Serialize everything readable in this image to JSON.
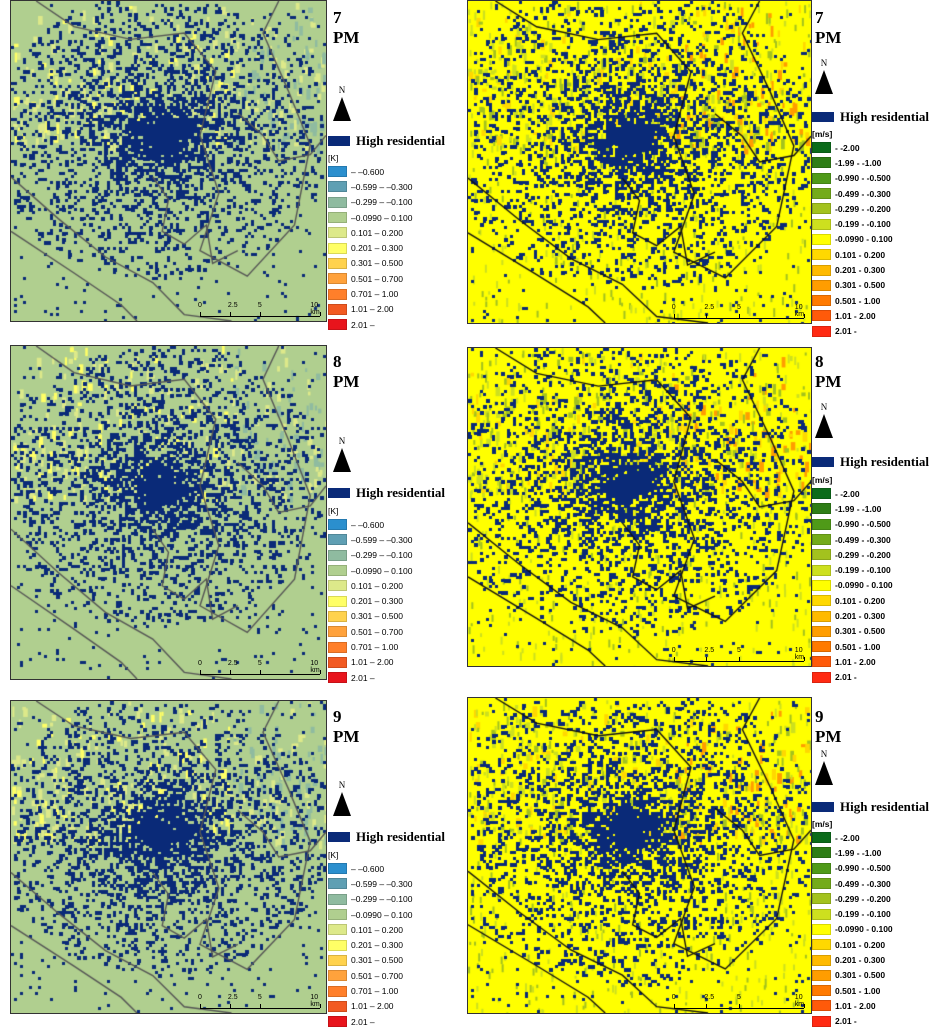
{
  "high_residential_label": "High residential",
  "north_label": "N",
  "scale_labels": [
    "0",
    "2.5",
    "5",
    "10 km"
  ],
  "colors": {
    "high_residential": "#0a2a78",
    "temp_bg": "#b0cf8f",
    "wind_bg": "#ffff00",
    "coast": "#333333"
  },
  "temperature_legend": {
    "unit": "[K]",
    "items": [
      {
        "label": "– –0.600",
        "color": "#2b8fce"
      },
      {
        "label": "–0.599 – –0.300",
        "color": "#5f9fb3"
      },
      {
        "label": "–0.299 – –0.100",
        "color": "#8fbba0"
      },
      {
        "label": "–0.0990 – 0.100",
        "color": "#b0cf8f"
      },
      {
        "label": "0.101 – 0.200",
        "color": "#dde98a"
      },
      {
        "label": "0.201 – 0.300",
        "color": "#ffff66"
      },
      {
        "label": "0.301 – 0.500",
        "color": "#ffd24d"
      },
      {
        "label": "0.501 – 0.700",
        "color": "#ffa23c"
      },
      {
        "label": "0.701 – 1.00",
        "color": "#ff7f2a"
      },
      {
        "label": "1.01 – 2.00",
        "color": "#f25a22"
      },
      {
        "label": "2.01 –",
        "color": "#e8141c"
      }
    ]
  },
  "wind_legend": {
    "unit": "[m/s]",
    "items": [
      {
        "label": " - -2.00",
        "color": "#0b6b1a"
      },
      {
        "label": "-1.99 - -1.00",
        "color": "#2e7d16"
      },
      {
        "label": "-0.990 - -0.500",
        "color": "#4f9a18"
      },
      {
        "label": "-0.499 - -0.300",
        "color": "#74ab1a"
      },
      {
        "label": "-0.299 - -0.200",
        "color": "#a3c21e"
      },
      {
        "label": "-0.199 - -0.100",
        "color": "#cde01f"
      },
      {
        "label": "-0.0990 - 0.100",
        "color": "#ffff00"
      },
      {
        "label": "0.101 - 0.200",
        "color": "#ffd800"
      },
      {
        "label": "0.201 - 0.300",
        "color": "#ffba00"
      },
      {
        "label": "0.301 - 0.500",
        "color": "#ff9d00"
      },
      {
        "label": "0.501 - 1.00",
        "color": "#ff7a00"
      },
      {
        "label": "1.01 - 2.00",
        "color": "#ff5a0a"
      },
      {
        "label": "2.01 -",
        "color": "#ff2a12"
      }
    ]
  },
  "panels": [
    {
      "time": "7 PM",
      "variable": "temperature"
    },
    {
      "time": "7 PM",
      "variable": "wind"
    },
    {
      "time": "8 PM",
      "variable": "temperature"
    },
    {
      "time": "8 PM",
      "variable": "wind"
    },
    {
      "time": "9 PM",
      "variable": "temperature"
    },
    {
      "time": "9 PM",
      "variable": "wind"
    }
  ]
}
